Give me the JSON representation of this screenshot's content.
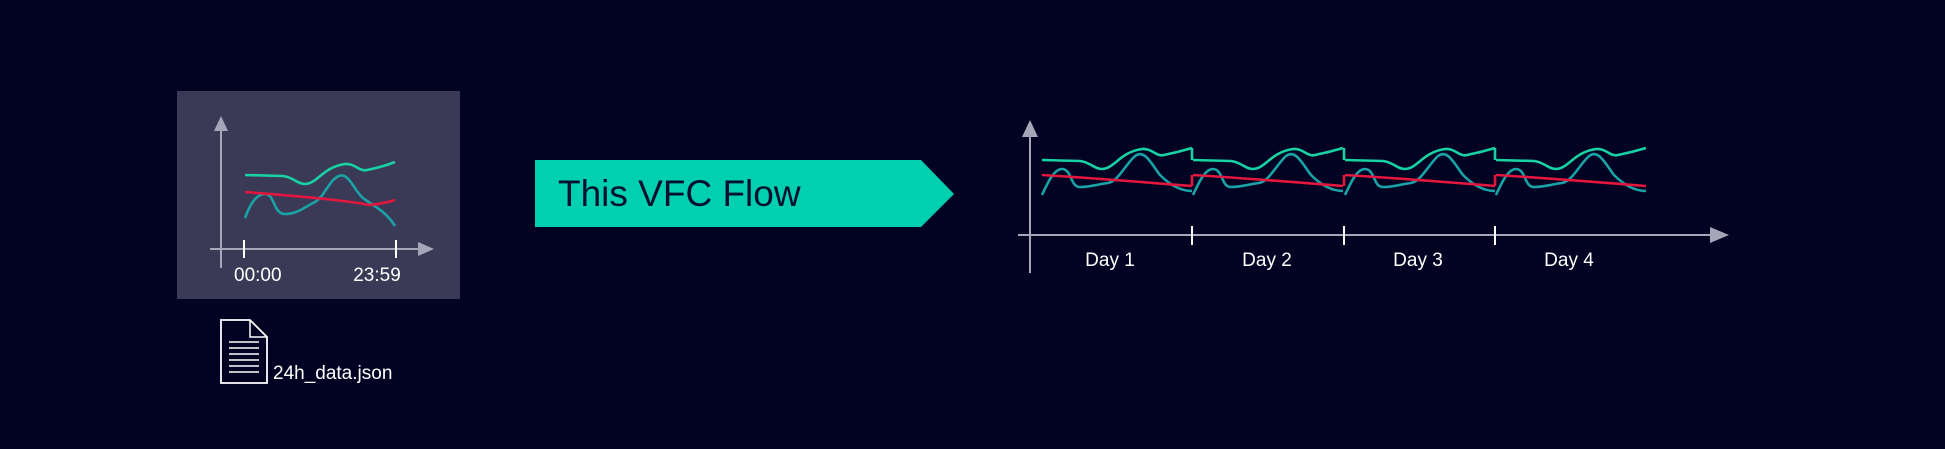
{
  "colors": {
    "background": "#020222",
    "panel": "#3a3a57",
    "axis": "#a6a6b8",
    "green": "#19d2a3",
    "teal": "#1aa3a6",
    "red": "#e3173e",
    "banner": "#00d0b0",
    "banner_text": "#06102e",
    "text": "#ffffff"
  },
  "source": {
    "tick_start": "00:00",
    "tick_end": "23:59",
    "file_name": "24h_data.json",
    "file_icon": "document-icon"
  },
  "banner": {
    "label": "This VFC Flow"
  },
  "result": {
    "days": [
      "Day 1",
      "Day 2",
      "Day 3",
      "Day 4"
    ]
  }
}
